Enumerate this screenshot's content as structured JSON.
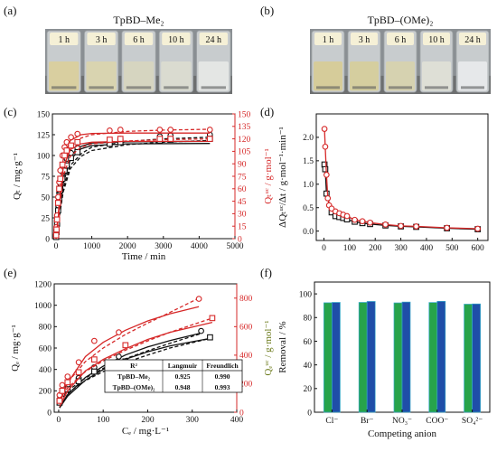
{
  "figure": {
    "panel_letters": [
      "(a)",
      "(b)",
      "(c)",
      "(d)",
      "(e)",
      "(f)"
    ]
  },
  "colors": {
    "black": "#111111",
    "red": "#d62828",
    "green": "#27a34b",
    "blue": "#1f4ea8",
    "cyan_border": "#34a7c9"
  },
  "photos": [
    {
      "title": "TpBD–Me₂",
      "labels": [
        "1 h",
        "3 h",
        "6 h",
        "10 h",
        "24 h"
      ],
      "liquid_colors": [
        "#d9cfa0",
        "#d9d4b0",
        "#d6d5c0",
        "#dadbd0",
        "#e4e6e4"
      ]
    },
    {
      "title": "TpBD–(OMe)₂",
      "labels": [
        "1 h",
        "3 h",
        "6 h",
        "10 h",
        "24 h"
      ],
      "liquid_colors": [
        "#d6cc9a",
        "#d5ce9f",
        "#d6d2b0",
        "#dedfd6",
        "#e6e8ea"
      ]
    }
  ],
  "chart_data": [
    {
      "panel": "(c)",
      "type": "scatter",
      "xlabel": "Time / min",
      "ylabel_left": "Qₜ / mg·g⁻¹",
      "ylabel_right": "Qₜᵘᶜ / g·mol⁻¹",
      "xlim": [
        -100,
        5000
      ],
      "ylim_left": [
        0,
        150
      ],
      "ylim_right": [
        0,
        150
      ],
      "x_ticks": [
        0,
        1000,
        2000,
        3000,
        4000,
        5000
      ],
      "y_ticks_left": [
        0,
        25,
        50,
        75,
        100,
        125,
        150
      ],
      "y_ticks_right": [
        0,
        15,
        30,
        45,
        60,
        75,
        90,
        105,
        120,
        135,
        150
      ],
      "series": [
        {
          "axis": "left",
          "color": "black",
          "marker": "circle",
          "x": [
            5,
            15,
            30,
            60,
            90,
            120,
            180,
            240,
            300,
            420,
            600,
            1500,
            1800,
            2900,
            3200,
            4300
          ],
          "y": [
            3,
            10,
            22,
            40,
            55,
            66,
            80,
            89,
            96,
            103,
            109,
            118,
            120,
            123,
            124,
            125
          ],
          "fit_solid": [
            [
              0,
              0
            ],
            [
              200,
              72
            ],
            [
              400,
              100
            ],
            [
              700,
              111
            ],
            [
              1000,
              115
            ],
            [
              2000,
              116.5
            ],
            [
              4300,
              117
            ]
          ],
          "fit_dashed": [
            [
              0,
              0
            ],
            [
              200,
              60
            ],
            [
              400,
              88
            ],
            [
              700,
              102
            ],
            [
              1000,
              110
            ],
            [
              2000,
              117
            ],
            [
              3000,
              120
            ],
            [
              4300,
              122
            ]
          ]
        },
        {
          "axis": "left",
          "color": "black",
          "marker": "square",
          "x": [
            5,
            15,
            30,
            60,
            90,
            120,
            180,
            240,
            300,
            420,
            600,
            1500,
            1800,
            2900,
            3200,
            4300
          ],
          "y": [
            2,
            8,
            18,
            34,
            48,
            58,
            72,
            82,
            88,
            97,
            104,
            114,
            116,
            118,
            119,
            120
          ],
          "fit_solid": [
            [
              0,
              0
            ],
            [
              200,
              66
            ],
            [
              400,
              95
            ],
            [
              700,
              108
            ],
            [
              1000,
              112
            ],
            [
              2000,
              114
            ],
            [
              4300,
              114.5
            ]
          ],
          "fit_dashed": [
            [
              0,
              0
            ],
            [
              200,
              56
            ],
            [
              400,
              84
            ],
            [
              700,
              99
            ],
            [
              1000,
              106
            ],
            [
              2000,
              113
            ],
            [
              3000,
              116
            ],
            [
              4300,
              118
            ]
          ]
        },
        {
          "axis": "right",
          "color": "red",
          "marker": "circle",
          "x": [
            5,
            15,
            30,
            60,
            90,
            120,
            180,
            240,
            300,
            420,
            600,
            1500,
            1800,
            2900,
            3200,
            4300
          ],
          "y": [
            5,
            14,
            28,
            50,
            68,
            82,
            100,
            110,
            116,
            122,
            126,
            130,
            131,
            131,
            131,
            131
          ],
          "fit_solid": [
            [
              0,
              0
            ],
            [
              200,
              95
            ],
            [
              400,
              118
            ],
            [
              700,
              125
            ],
            [
              1000,
              126.5
            ],
            [
              2000,
              127
            ],
            [
              4300,
              127
            ]
          ],
          "fit_dashed": [
            [
              0,
              0
            ],
            [
              200,
              85
            ],
            [
              400,
              110
            ],
            [
              700,
              121
            ],
            [
              1000,
              125
            ],
            [
              2000,
              129
            ],
            [
              3000,
              130.5
            ],
            [
              4300,
              131.5
            ]
          ]
        },
        {
          "axis": "right",
          "color": "red",
          "marker": "square",
          "x": [
            5,
            15,
            30,
            60,
            90,
            120,
            180,
            240,
            300,
            420,
            600,
            1500,
            1800,
            2900,
            3200,
            4300
          ],
          "y": [
            4,
            11,
            23,
            43,
            60,
            72,
            89,
            100,
            106,
            112,
            116,
            119,
            120,
            120,
            120,
            120
          ],
          "fit_solid": [
            [
              0,
              0
            ],
            [
              200,
              85
            ],
            [
              400,
              107
            ],
            [
              700,
              114
            ],
            [
              1000,
              116
            ],
            [
              2000,
              117
            ],
            [
              4300,
              117
            ]
          ],
          "fit_dashed": [
            [
              0,
              0
            ],
            [
              200,
              75
            ],
            [
              400,
              99
            ],
            [
              700,
              110
            ],
            [
              1000,
              114
            ],
            [
              2000,
              117.5
            ],
            [
              3000,
              119
            ],
            [
              4300,
              120
            ]
          ]
        }
      ]
    },
    {
      "panel": "(d)",
      "type": "scatter",
      "xlabel": "",
      "ylabel": "ΔQₜᵘᶜ/Δt / g·mol⁻¹·min⁻¹",
      "xlim": [
        -30,
        640
      ],
      "ylim": [
        -0.2,
        2.5
      ],
      "x_ticks": [
        0,
        100,
        200,
        300,
        400,
        500,
        600
      ],
      "y_ticks": [
        0.0,
        0.5,
        1.0,
        1.5,
        2.0
      ],
      "series": [
        {
          "color": "black",
          "marker": "square",
          "x": [
            2,
            5,
            10,
            30,
            45,
            60,
            75,
            90,
            120,
            150,
            180,
            240,
            300,
            360,
            480,
            600
          ],
          "y": [
            1.42,
            1.32,
            0.8,
            0.4,
            0.32,
            0.3,
            0.28,
            0.25,
            0.2,
            0.17,
            0.15,
            0.12,
            0.1,
            0.09,
            0.06,
            0.04
          ]
        },
        {
          "color": "red",
          "marker": "circle",
          "x": [
            2,
            5,
            10,
            15,
            20,
            30,
            45,
            60,
            75,
            90,
            120,
            150,
            180,
            240,
            300,
            360,
            480,
            600
          ],
          "y": [
            2.18,
            1.8,
            1.2,
            0.7,
            0.55,
            0.48,
            0.42,
            0.38,
            0.35,
            0.32,
            0.24,
            0.21,
            0.18,
            0.14,
            0.11,
            0.1,
            0.07,
            0.05
          ]
        }
      ]
    },
    {
      "panel": "(e)",
      "type": "scatter",
      "xlabel": "Cₑ / mg·L⁻¹",
      "ylabel_left": "Qₑ / mg·g⁻¹",
      "ylabel_right": "Qₑᵘᶜ / g·mol⁻¹",
      "xlim": [
        -10,
        400
      ],
      "ylim_left": [
        0,
        1200
      ],
      "ylim_right": [
        0,
        900
      ],
      "x_ticks": [
        0,
        100,
        200,
        300,
        400
      ],
      "y_ticks_left": [
        0,
        200,
        400,
        600,
        800,
        1000,
        1200
      ],
      "y_ticks_right": [
        0,
        200,
        400,
        600,
        800
      ],
      "series": [
        {
          "axis": "left",
          "color": "black",
          "marker": "circle",
          "x": [
            2,
            8,
            20,
            45,
            80,
            135,
            320
          ],
          "y": [
            120,
            205,
            250,
            320,
            420,
            520,
            760
          ],
          "fit_solid": [
            [
              2,
              45
            ],
            [
              20,
              165
            ],
            [
              60,
              325
            ],
            [
              100,
              430
            ],
            [
              150,
              535
            ],
            [
              200,
              610
            ],
            [
              250,
              670
            ],
            [
              320,
              740
            ]
          ],
          "fit_dashed": [
            [
              2,
              120
            ],
            [
              20,
              200
            ],
            [
              60,
              320
            ],
            [
              100,
              410
            ],
            [
              150,
              500
            ],
            [
              200,
              575
            ],
            [
              250,
              645
            ],
            [
              320,
              735
            ]
          ]
        },
        {
          "axis": "left",
          "color": "black",
          "marker": "square",
          "x": [
            2,
            8,
            20,
            45,
            80,
            150,
            340
          ],
          "y": [
            90,
            175,
            215,
            290,
            380,
            475,
            700
          ],
          "fit_solid": [
            [
              2,
              40
            ],
            [
              20,
              150
            ],
            [
              60,
              300
            ],
            [
              100,
              400
            ],
            [
              150,
              495
            ],
            [
              200,
              565
            ],
            [
              250,
              620
            ],
            [
              340,
              690
            ]
          ],
          "fit_dashed": [
            [
              2,
              100
            ],
            [
              20,
              180
            ],
            [
              60,
              295
            ],
            [
              100,
              380
            ],
            [
              150,
              465
            ],
            [
              200,
              535
            ],
            [
              250,
              600
            ],
            [
              340,
              690
            ]
          ]
        },
        {
          "axis": "right",
          "color": "red",
          "marker": "circle",
          "x": [
            2,
            8,
            20,
            45,
            80,
            135,
            315
          ],
          "y": [
            120,
            190,
            250,
            350,
            500,
            560,
            795
          ],
          "fit_solid": [
            [
              2,
              60
            ],
            [
              20,
              205
            ],
            [
              60,
              390
            ],
            [
              100,
              490
            ],
            [
              150,
              575
            ],
            [
              200,
              640
            ],
            [
              250,
              690
            ],
            [
              315,
              740
            ]
          ],
          "fit_dashed": [
            [
              2,
              110
            ],
            [
              20,
              210
            ],
            [
              60,
              355
            ],
            [
              100,
              450
            ],
            [
              150,
              545
            ],
            [
              200,
              625
            ],
            [
              250,
              700
            ],
            [
              315,
              800
            ]
          ]
        },
        {
          "axis": "right",
          "color": "red",
          "marker": "square",
          "x": [
            2,
            8,
            20,
            45,
            80,
            150,
            345
          ],
          "y": [
            80,
            150,
            210,
            280,
            370,
            470,
            660
          ],
          "fit_solid": [
            [
              2,
              40
            ],
            [
              20,
              150
            ],
            [
              60,
              290
            ],
            [
              100,
              370
            ],
            [
              150,
              445
            ],
            [
              200,
              510
            ],
            [
              250,
              560
            ],
            [
              345,
              630
            ]
          ],
          "fit_dashed": [
            [
              2,
              90
            ],
            [
              20,
              170
            ],
            [
              60,
              285
            ],
            [
              100,
              360
            ],
            [
              150,
              435
            ],
            [
              200,
              500
            ],
            [
              250,
              560
            ],
            [
              345,
              660
            ]
          ]
        }
      ],
      "inset_table": {
        "headers": [
          "R²",
          "Langmuir",
          "Freundlich"
        ],
        "rows": [
          [
            "TpBD–Me₂",
            "0.925",
            "0.990"
          ],
          [
            "TpBD–(OMe)₂",
            "0.948",
            "0.993"
          ]
        ]
      }
    },
    {
      "panel": "(f)",
      "type": "bar",
      "xlabel": "Competing anion",
      "ylabel": "Removal / %",
      "ylim": [
        0,
        110
      ],
      "y_ticks": [
        0,
        20,
        40,
        60,
        80,
        100
      ],
      "categories": [
        "Cl⁻",
        "Br⁻",
        "NO₃⁻",
        "COO⁻",
        "SO₄²⁻"
      ],
      "series": [
        {
          "color": "green",
          "values": [
            92.5,
            92.8,
            92.4,
            92.7,
            91.3
          ]
        },
        {
          "color": "blue",
          "values": [
            92.8,
            93.6,
            93.1,
            93.7,
            91.5
          ]
        }
      ]
    }
  ]
}
